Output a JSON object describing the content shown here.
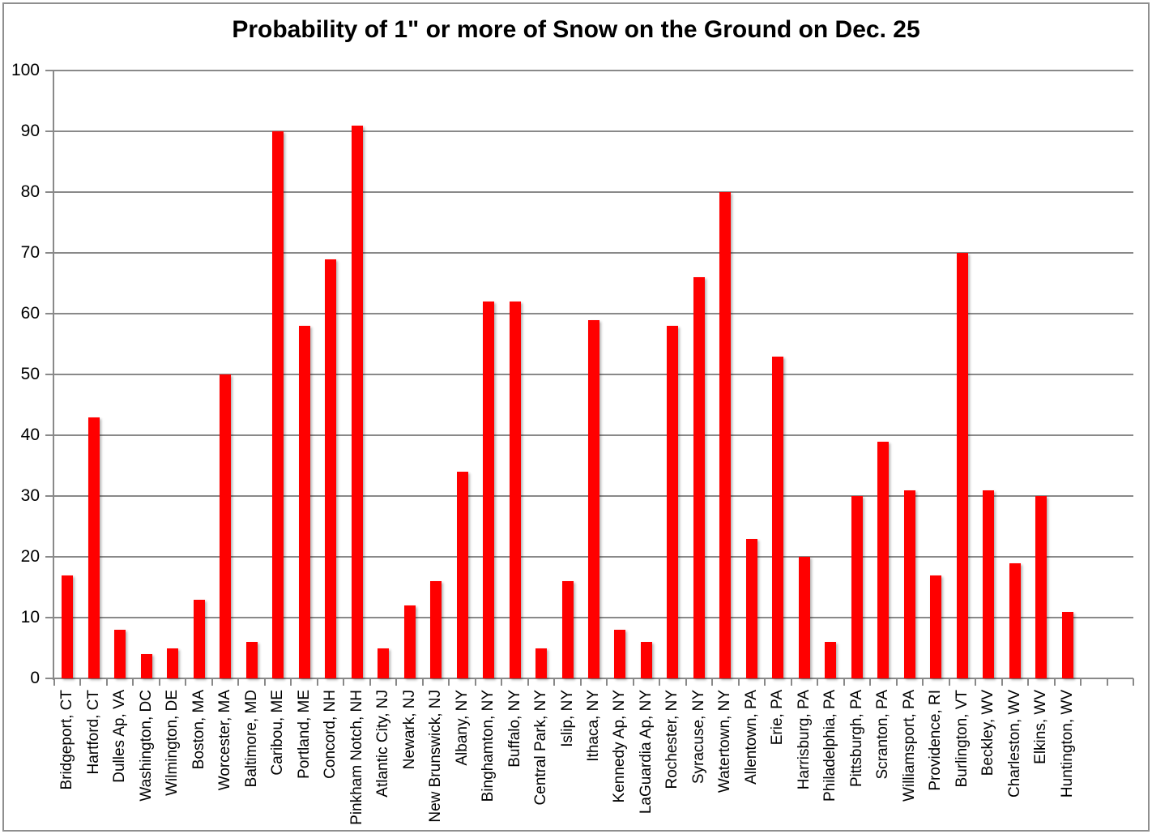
{
  "chart_data": {
    "type": "bar",
    "title": "Probability of 1\" or more of Snow on the Ground on Dec. 25",
    "categories": [
      "Bridgeport, CT",
      "Hartford, CT",
      "Dulles Ap, VA",
      "Washington, DC",
      "Wilmington, DE",
      "Boston, MA",
      "Worcester, MA",
      "Baltimore, MD",
      "Caribou, ME",
      "Portland, ME",
      "Concord, NH",
      "Pinkham Notch, NH",
      "Atlantic City, NJ",
      "Newark, NJ",
      "New Brunswick, NJ",
      "Albany, NY",
      "Binghamton, NY",
      "Buffalo, NY",
      "Central Park, NY",
      "Islip, NY",
      "Ithaca, NY",
      "Kennedy Ap, NY",
      "LaGuardia Ap, NY",
      "Rochester, NY",
      "Syracuse, NY",
      "Watertown, NY",
      "Allentown, PA",
      "Erie, PA",
      "Harrisburg, PA",
      "Philadelphia, PA",
      "Pittsburgh, PA",
      "Scranton, PA",
      "Williamsport, PA",
      "Providence, RI",
      "Burlington, VT",
      "Beckley, WV",
      "Charleston, WV",
      "Elkins, WV",
      "Huntington, WV"
    ],
    "values": [
      17,
      43,
      8,
      4,
      5,
      13,
      50,
      6,
      90,
      58,
      69,
      91,
      5,
      12,
      16,
      34,
      62,
      62,
      5,
      16,
      59,
      8,
      6,
      58,
      66,
      80,
      23,
      53,
      20,
      6,
      30,
      39,
      31,
      17,
      70,
      31,
      19,
      30,
      11
    ],
    "xlabel": "",
    "ylabel": "",
    "ylim": [
      0,
      100
    ],
    "ytick_interval": 10,
    "yticks": [
      "0",
      "10",
      "20",
      "30",
      "40",
      "50",
      "60",
      "70",
      "80",
      "90",
      "100"
    ],
    "grid": true,
    "legend": "none",
    "bar_color": "#FF0000",
    "axis_color": "#898989",
    "text_color": "#000000",
    "empty_trailing_slots": 2
  }
}
